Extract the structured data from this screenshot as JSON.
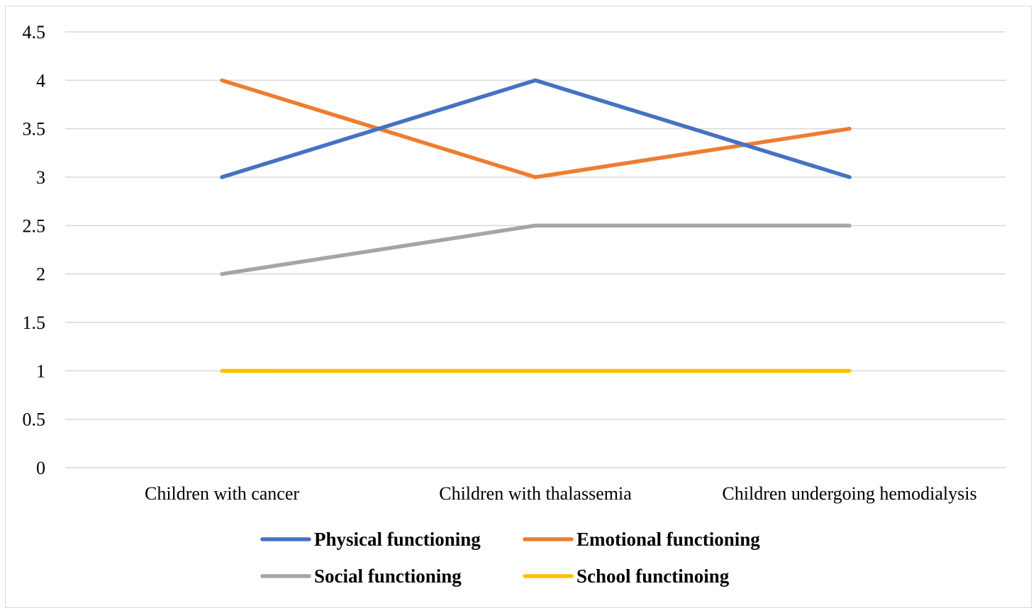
{
  "chart_data": {
    "type": "line",
    "title": "",
    "xlabel": "",
    "ylabel": "",
    "categories": [
      "Children with cancer",
      "Children with thalassemia",
      "Children undergoing hemodialysis"
    ],
    "ylim": [
      0,
      4.5
    ],
    "yticks": [
      "0",
      "0.5",
      "1",
      "1.5",
      "2",
      "2.5",
      "3",
      "3.5",
      "4",
      "4.5"
    ],
    "grid": "horizontal",
    "legend_position": "bottom",
    "series": [
      {
        "name": "Physical functioning",
        "values": [
          3,
          4,
          3
        ],
        "color": "#4472C4"
      },
      {
        "name": "Emotional functioning",
        "values": [
          4,
          3,
          3.5
        ],
        "color": "#ED7D31"
      },
      {
        "name": "Social functioning",
        "values": [
          2,
          2.5,
          2.5
        ],
        "color": "#A5A5A5"
      },
      {
        "name": "School functinoing",
        "values": [
          1,
          1,
          1
        ],
        "color": "#FFC000"
      }
    ]
  }
}
